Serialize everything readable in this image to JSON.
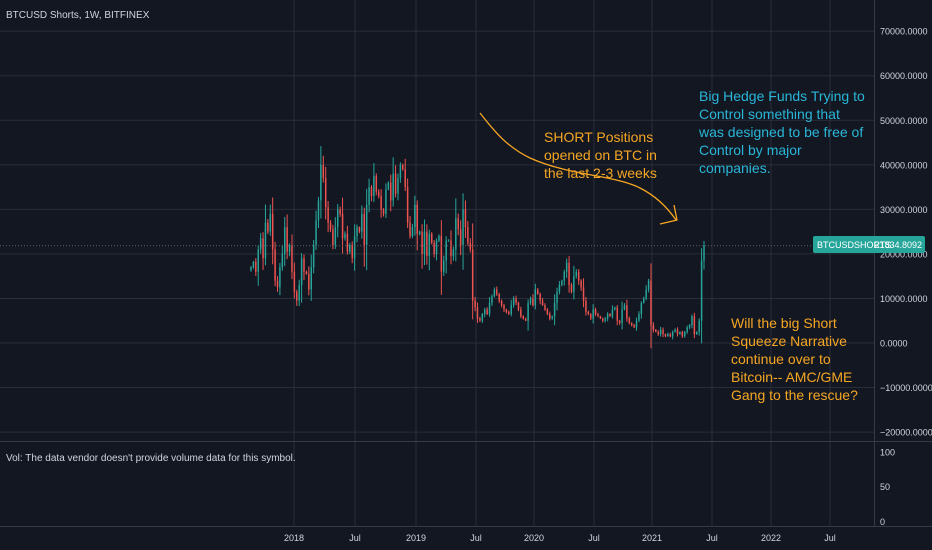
{
  "symbol_title": "BTCUSD Shorts, 1W, BITFINEX",
  "volume_note": "Vol: The data vendor doesn't provide volume data for this symbol.",
  "colors": {
    "background": "#131722",
    "up": "#26a69a",
    "down": "#ef5350",
    "grid": "#2a2e39",
    "axis_text": "#d1d4dc",
    "annotation_orange": "#f5a623",
    "annotation_cyan": "#29b6d8",
    "price_tag": "#26a69a",
    "last_line": "#5d606b"
  },
  "annotations": {
    "short_positions": [
      "SHORT Positions",
      "opened on BTC in",
      "the last 2-3 weeks"
    ],
    "hedge_funds": [
      "Big Hedge Funds Trying to",
      "Control something that",
      "was designed to be free of",
      "Control by major",
      "companies."
    ],
    "squeeze": [
      "Will the big Short",
      "Squeeze Narrative",
      "continue over to",
      "Bitcoin-- AMC/GME",
      "Gang to the rescue?"
    ]
  },
  "price_tag": {
    "symbol": "BTCUSDSHORTS",
    "value": "21834.8092"
  },
  "chart_data": {
    "type": "candlestick",
    "title": "BTCUSD Shorts, 1W, BITFINEX",
    "y_axis": {
      "ylim": [
        -22000,
        77000
      ],
      "ticks": [
        -20000,
        -10000,
        0,
        10000,
        20000,
        30000,
        40000,
        50000,
        60000,
        70000
      ],
      "tick_labels": [
        "−20000.0000",
        "−10000.0000",
        "0.0000",
        "10000.0000",
        "20000.0000",
        "30000.0000",
        "40000.0000",
        "50000.0000",
        "60000.0000",
        "70000.0000"
      ]
    },
    "x_axis": {
      "labels": [
        "2018",
        "Jul",
        "2019",
        "Jul",
        "2020",
        "Jul",
        "2021",
        "Jul",
        "2022",
        "Jul"
      ]
    },
    "volume_pane": {
      "ylim": [
        -5,
        110
      ],
      "tick_labels": [
        "100",
        "50",
        "0"
      ],
      "tick_values": [
        100,
        50,
        0
      ]
    },
    "last_value": 21834.8092,
    "close_series": [
      17000,
      18200,
      16000,
      21000,
      23500,
      19000,
      27000,
      25000,
      29000,
      21000,
      14000,
      12500,
      17000,
      20000,
      26000,
      20500,
      22000,
      16000,
      11500,
      9500,
      13000,
      19000,
      16000,
      15500,
      12000,
      17000,
      22000,
      27500,
      32000,
      40000,
      37000,
      30500,
      27000,
      25500,
      22000,
      26000,
      30000,
      29000,
      23500,
      24500,
      20500,
      22000,
      19000,
      24000,
      26000,
      25000,
      29000,
      22000,
      31000,
      35000,
      33000,
      37500,
      34000,
      33000,
      30000,
      29000,
      34500,
      36000,
      32000,
      38000,
      33500,
      37000,
      40000,
      39000,
      35000,
      27000,
      24000,
      26000,
      31000,
      24500,
      25000,
      20000,
      25000,
      19500,
      24500,
      22500,
      20000,
      23000,
      24000,
      16000,
      18500,
      23000,
      23000,
      19500,
      21000,
      28000,
      25500,
      22000,
      30000,
      26000,
      22500,
      21000,
      9500,
      8000,
      5500,
      5000,
      6500,
      7500,
      6500,
      9000,
      10500,
      12000,
      11000,
      9500,
      8500,
      7500,
      7000,
      6500,
      8500,
      10000,
      9000,
      7500,
      6000,
      5500,
      5000,
      9000,
      10000,
      8500,
      12000,
      11000,
      9500,
      8500,
      7500,
      6500,
      5500,
      6000,
      9000,
      11500,
      13000,
      14000,
      16000,
      18000,
      13000,
      11500,
      15000,
      16000,
      14000,
      12500,
      9500,
      7000,
      6500,
      5500,
      7500,
      6500,
      6000,
      5500,
      5000,
      5500,
      6500,
      6000,
      7500,
      8000,
      5000,
      4500,
      7500,
      8500,
      5500,
      4500,
      4000,
      3500,
      5000,
      6500,
      9000,
      10000,
      12000,
      14000,
      4000,
      3000,
      2500,
      2000,
      3000,
      2000,
      1500,
      2000,
      1500,
      2500,
      3000,
      2000,
      2500,
      1500,
      2500,
      3500,
      4000,
      6000,
      2000,
      2500,
      5000,
      18500,
      21835
    ]
  }
}
